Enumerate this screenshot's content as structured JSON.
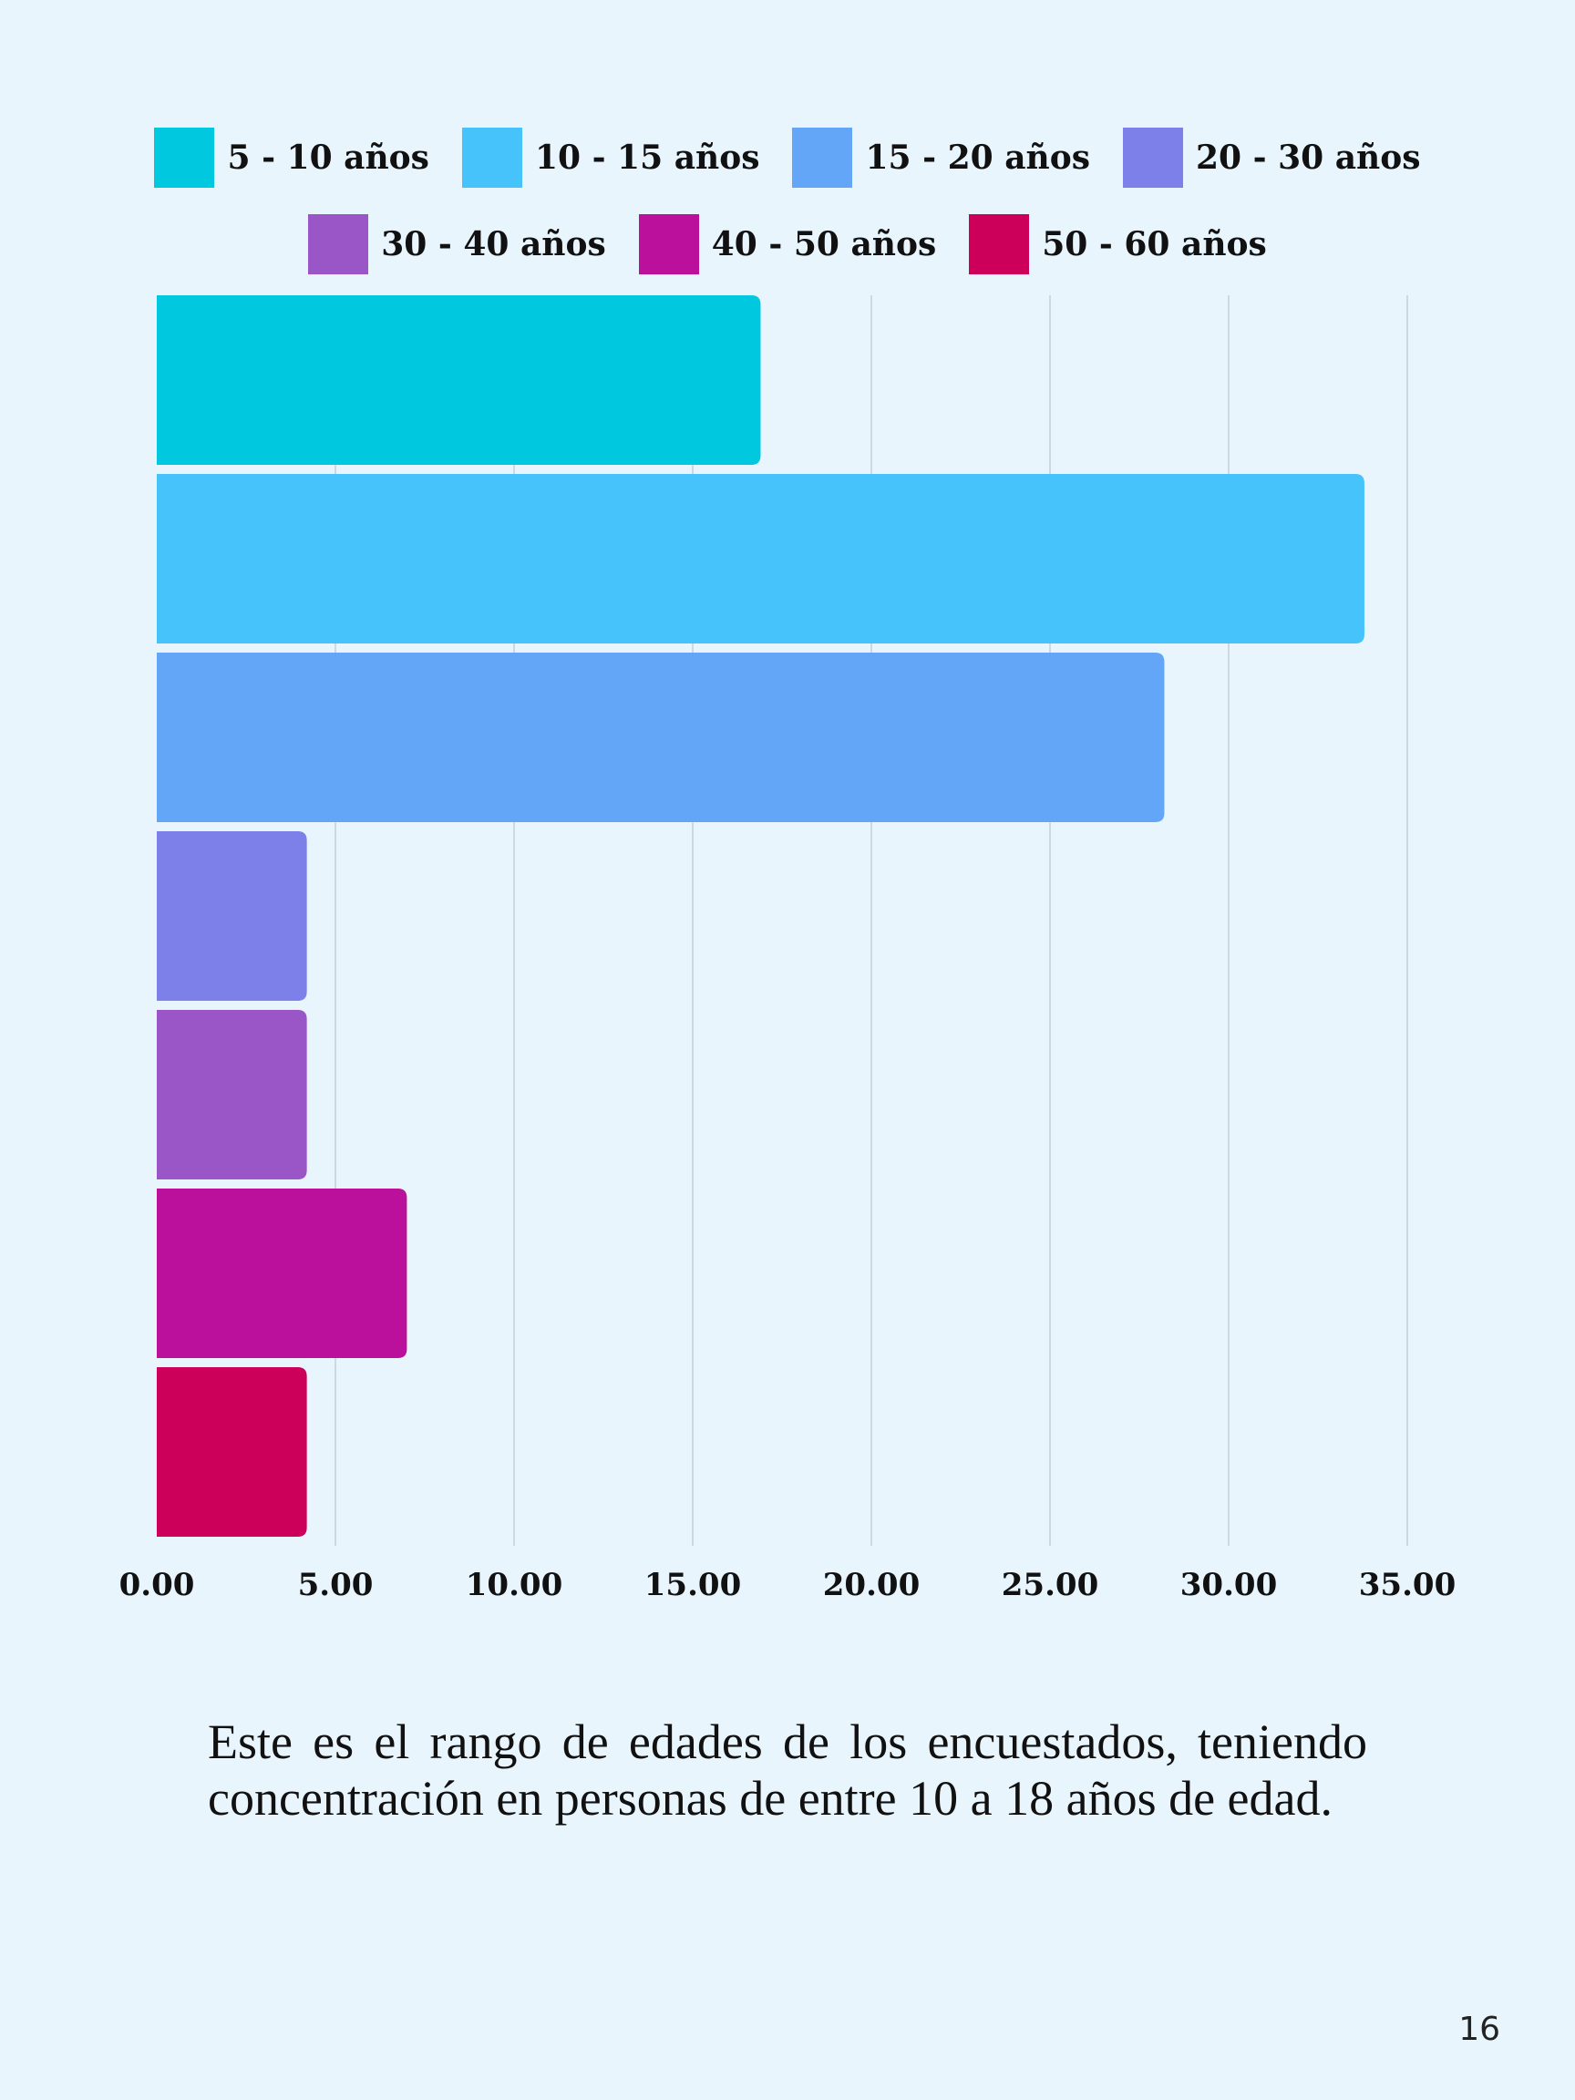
{
  "chart_data": {
    "type": "bar",
    "orientation": "horizontal",
    "categories": [
      "5 - 10 años",
      "10 - 15 años",
      "15 - 20 años",
      "20 - 30 años",
      "30 - 40 años",
      "40 - 50 años",
      "50 - 60 años"
    ],
    "values": [
      16.9,
      33.8,
      28.2,
      4.2,
      4.2,
      7.0,
      4.2
    ],
    "colors": [
      "#00c8df",
      "#47c3fc",
      "#63a6f8",
      "#7c80e8",
      "#9a56c6",
      "#ba109b",
      "#cc005b"
    ],
    "xlim": [
      0,
      35
    ],
    "x_ticks": [
      "0.00",
      "5.00",
      "10.00",
      "15.00",
      "20.00",
      "25.00",
      "30.00",
      "35.00"
    ],
    "tick_values": [
      0,
      5,
      10,
      15,
      20,
      25,
      30,
      35
    ],
    "grid": "vertical",
    "legend_position": "top",
    "title": "",
    "xlabel": "",
    "ylabel": ""
  },
  "caption": "Este es el rango de edades de los encuestados, teniendo concentración en personas de entre 10 a 18 años de edad.",
  "page_number": "16"
}
